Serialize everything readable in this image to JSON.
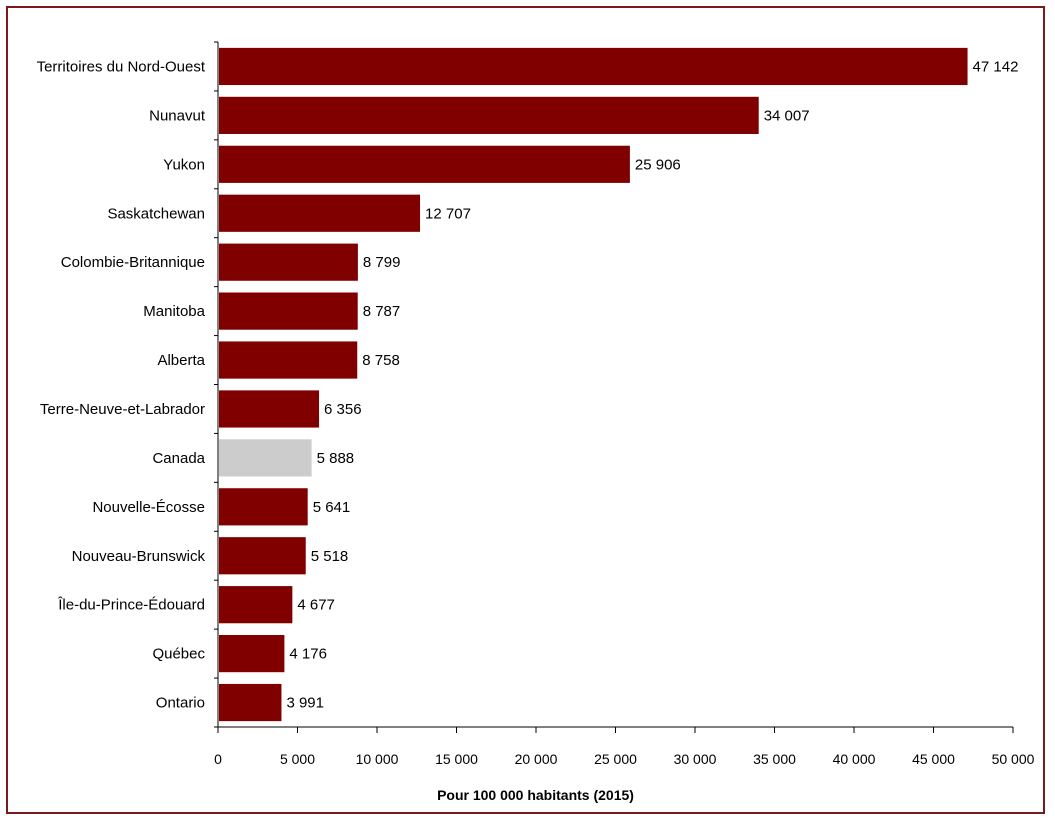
{
  "chart_data": {
    "type": "bar",
    "orientation": "horizontal",
    "categories": [
      "Territoires du Nord-Ouest",
      "Nunavut",
      "Yukon",
      "Saskatchewan",
      "Colombie-Britannique",
      "Manitoba",
      "Alberta",
      "Terre-Neuve-et-Labrador",
      "Canada",
      "Nouvelle-Écosse",
      "Nouveau-Brunswick",
      "Île-du-Prince-Édouard",
      "Québec",
      "Ontario"
    ],
    "values": [
      47142,
      34007,
      25906,
      12707,
      8799,
      8787,
      8758,
      6356,
      5888,
      5641,
      5518,
      4677,
      4176,
      3991
    ],
    "value_labels": [
      "47 142",
      "34 007",
      "25 906",
      "12 707",
      "8 799",
      "8 787",
      "8 758",
      "6 356",
      "5 888",
      "5 641",
      "5 518",
      "4 677",
      "4 176",
      "3 991"
    ],
    "highlight_category": "Canada",
    "xlabel": "Pour 100 000 habitants (2015)",
    "ylabel": "",
    "xlim": [
      0,
      50000
    ],
    "xticks": [
      0,
      5000,
      10000,
      15000,
      20000,
      25000,
      30000,
      35000,
      40000,
      45000,
      50000
    ],
    "xtick_labels": [
      "0",
      "5 000",
      "10 000",
      "15 000",
      "20 000",
      "25 000",
      "30 000",
      "35 000",
      "40 000",
      "45 000",
      "50 000"
    ],
    "grid": false,
    "colors": {
      "bar": "#800000",
      "highlight": "#cccccc",
      "frame": "#7b1a1a"
    }
  }
}
